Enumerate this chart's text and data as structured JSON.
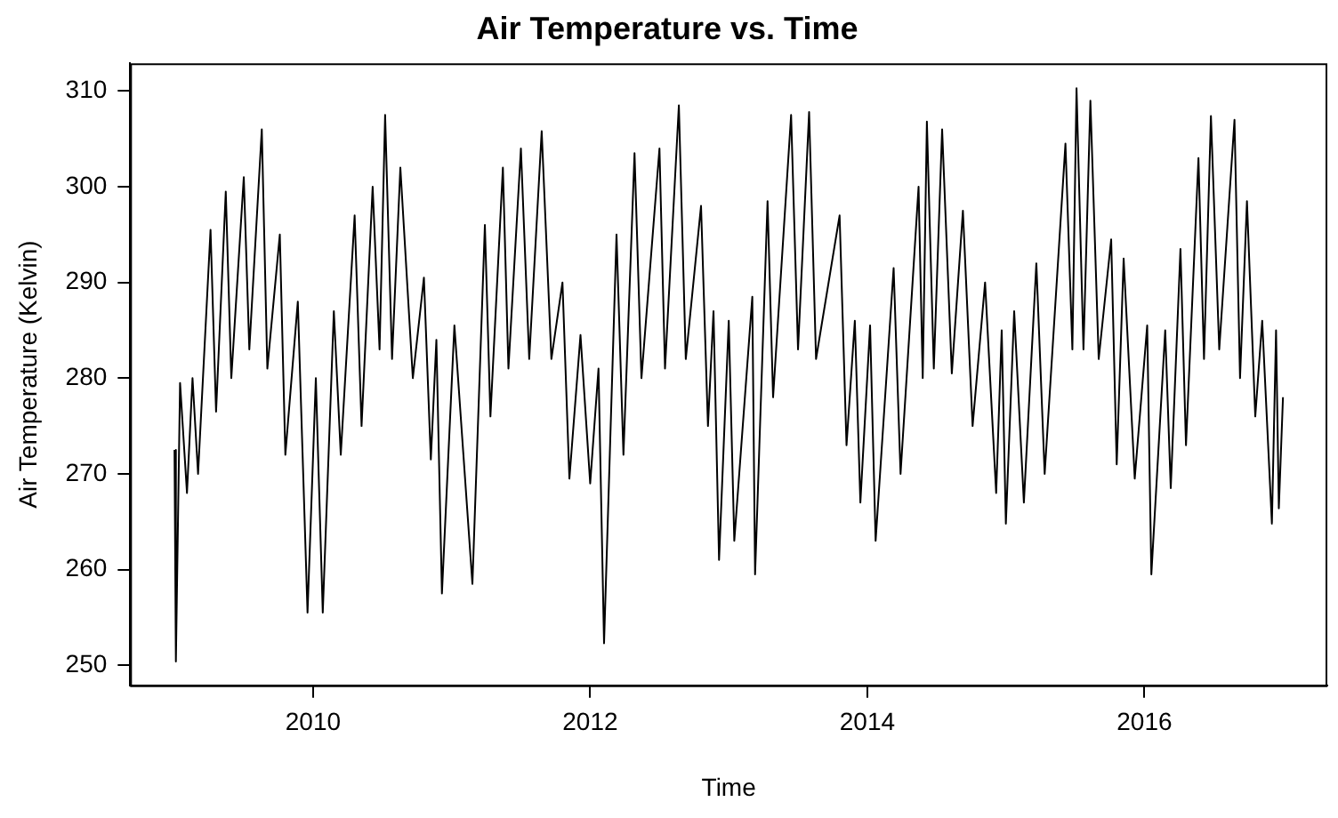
{
  "chart_data": {
    "type": "line",
    "title": "Air Temperature vs. Time",
    "xlabel": "Time",
    "ylabel": "Air Temperature (Kelvin)",
    "x": [
      2009.0,
      2009.01,
      2009.04,
      2009.09,
      2009.13,
      2009.17,
      2009.26,
      2009.3,
      2009.37,
      2009.41,
      2009.5,
      2009.54,
      2009.63,
      2009.67,
      2009.76,
      2009.8,
      2009.89,
      2009.96,
      2010.02,
      2010.07,
      2010.15,
      2010.2,
      2010.3,
      2010.35,
      2010.43,
      2010.48,
      2010.52,
      2010.57,
      2010.63,
      2010.72,
      2010.8,
      2010.85,
      2010.89,
      2010.93,
      2011.02,
      2011.15,
      2011.24,
      2011.28,
      2011.37,
      2011.41,
      2011.5,
      2011.56,
      2011.65,
      2011.72,
      2011.8,
      2011.85,
      2011.93,
      2012.0,
      2012.06,
      2012.1,
      2012.19,
      2012.24,
      2012.32,
      2012.37,
      2012.5,
      2012.54,
      2012.64,
      2012.69,
      2012.8,
      2012.85,
      2012.89,
      2012.93,
      2013.0,
      2013.04,
      2013.17,
      2013.19,
      2013.28,
      2013.32,
      2013.45,
      2013.5,
      2013.58,
      2013.63,
      2013.8,
      2013.85,
      2013.91,
      2013.95,
      2014.02,
      2014.06,
      2014.19,
      2014.24,
      2014.37,
      2014.4,
      2014.43,
      2014.48,
      2014.54,
      2014.61,
      2014.69,
      2014.76,
      2014.85,
      2014.93,
      2014.97,
      2015.0,
      2015.06,
      2015.13,
      2015.22,
      2015.28,
      2015.43,
      2015.48,
      2015.51,
      2015.56,
      2015.61,
      2015.67,
      2015.76,
      2015.8,
      2015.85,
      2015.93,
      2016.02,
      2016.05,
      2016.15,
      2016.19,
      2016.26,
      2016.3,
      2016.39,
      2016.43,
      2016.48,
      2016.54,
      2016.65,
      2016.69,
      2016.74,
      2016.8,
      2016.85,
      2016.92,
      2016.95,
      2016.97,
      2017.0
    ],
    "series": [
      {
        "color": "#000000",
        "values": [
          272.5,
          250.4,
          279.5,
          268,
          280,
          270,
          295.5,
          276.5,
          299.5,
          280,
          301,
          283,
          306,
          281,
          295,
          272,
          288,
          255.5,
          280,
          255.5,
          287,
          272,
          297,
          275,
          300,
          283,
          307.5,
          282,
          302,
          280,
          290.5,
          271.5,
          284,
          257.5,
          285.5,
          258.5,
          296,
          276,
          302,
          281,
          304,
          282,
          305.8,
          282,
          290,
          269.5,
          284.5,
          269,
          281,
          252.3,
          295,
          272,
          303.5,
          280,
          304,
          281,
          308.5,
          282,
          298,
          275,
          287,
          261,
          286,
          263,
          288.5,
          259.5,
          298.5,
          278,
          307.5,
          283,
          307.8,
          282,
          297,
          273,
          286,
          267,
          285.5,
          263,
          291.5,
          270,
          300,
          280,
          306.8,
          281,
          306,
          280.5,
          297.5,
          275,
          290,
          268,
          285,
          264.8,
          287,
          267,
          292,
          270,
          304.5,
          283,
          310.3,
          283,
          309,
          282,
          294.5,
          271,
          292.5,
          269.5,
          285.5,
          259.5,
          285,
          268.5,
          293.5,
          273,
          303,
          282,
          307.4,
          283,
          307,
          280,
          298.5,
          276,
          286,
          264.8,
          285,
          266.4,
          278
        ]
      }
    ],
    "xlim": [
      2008.68,
      2017.32
    ],
    "ylim": [
      247.9,
      312.9
    ],
    "xticks": [
      2010,
      2012,
      2014,
      2016
    ],
    "yticks": [
      250,
      260,
      270,
      280,
      290,
      300,
      310
    ],
    "grid": false
  }
}
